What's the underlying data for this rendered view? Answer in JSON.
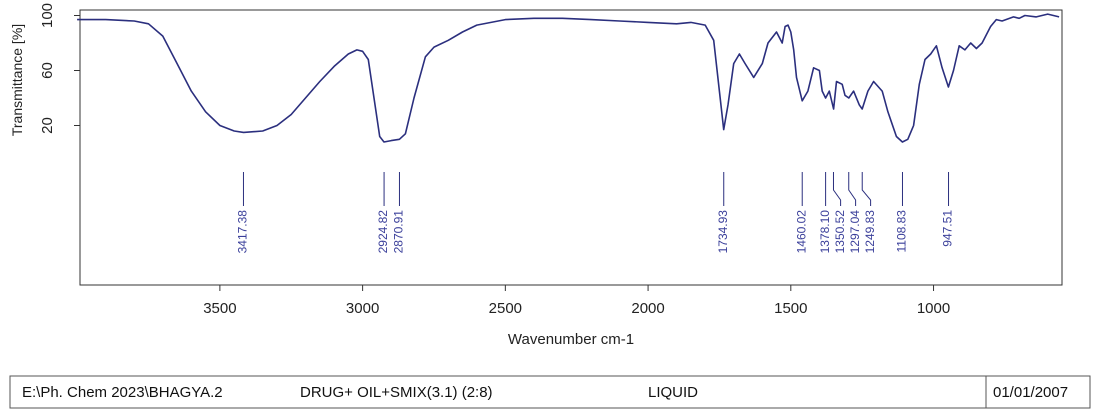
{
  "chart_data": {
    "type": "line",
    "ylabel": "Transmittance [%]",
    "xlabel": "Wavenumber cm-1",
    "color": "#2b2f7e",
    "xlim": [
      3990,
      550
    ],
    "ylim": [
      -96,
      104
    ],
    "xticks": [
      3500,
      3000,
      2500,
      2000,
      1500,
      1000
    ],
    "yticks": [
      20,
      60,
      100
    ],
    "x": [
      4000,
      3900,
      3800,
      3750,
      3700,
      3650,
      3600,
      3550,
      3500,
      3450,
      3417,
      3350,
      3300,
      3250,
      3200,
      3150,
      3100,
      3050,
      3020,
      3000,
      2980,
      2960,
      2940,
      2925,
      2900,
      2871,
      2850,
      2820,
      2780,
      2750,
      2700,
      2650,
      2600,
      2500,
      2400,
      2300,
      2200,
      2100,
      2000,
      1900,
      1850,
      1800,
      1770,
      1750,
      1735,
      1720,
      1700,
      1680,
      1660,
      1630,
      1600,
      1580,
      1550,
      1530,
      1520,
      1510,
      1500,
      1490,
      1480,
      1460,
      1440,
      1420,
      1400,
      1390,
      1378,
      1365,
      1350,
      1340,
      1320,
      1310,
      1297,
      1280,
      1260,
      1250,
      1230,
      1210,
      1180,
      1160,
      1130,
      1109,
      1090,
      1070,
      1050,
      1030,
      1010,
      1000,
      990,
      970,
      948,
      930,
      910,
      890,
      870,
      850,
      830,
      800,
      780,
      760,
      720,
      700,
      680,
      640,
      600,
      560
    ],
    "values": [
      97,
      97,
      96,
      94,
      85,
      65,
      45,
      30,
      20,
      16,
      15,
      16,
      20,
      28,
      40,
      52,
      63,
      72,
      75,
      74,
      68,
      40,
      12,
      8,
      9,
      10,
      14,
      40,
      70,
      77,
      82,
      88,
      93,
      97,
      98,
      98,
      97,
      96,
      95,
      94,
      95,
      93,
      82,
      45,
      17,
      35,
      65,
      72,
      65,
      55,
      65,
      80,
      88,
      80,
      92,
      93,
      88,
      75,
      55,
      38,
      45,
      62,
      60,
      45,
      40,
      45,
      32,
      52,
      50,
      42,
      40,
      45,
      35,
      32,
      45,
      52,
      45,
      30,
      12,
      8,
      10,
      20,
      50,
      68,
      72,
      75,
      78,
      62,
      48,
      60,
      78,
      75,
      80,
      76,
      80,
      92,
      97,
      96,
      99,
      98,
      100,
      99,
      101,
      99
    ],
    "peaks": [
      3417.38,
      2924.82,
      2870.91,
      1734.93,
      1460.02,
      1378.1,
      1350.52,
      1297.04,
      1249.83,
      1108.83,
      947.51
    ],
    "peak_labels": [
      "3417.38",
      "2924.82",
      "2870.91",
      "1734.93",
      "1460.02",
      "1378.10",
      "1350.52",
      "1297.04",
      "1249.83",
      "1108.83",
      "947.51"
    ]
  },
  "footer": {
    "path": "E:\\Ph. Chem 2023\\BHAGYA.2",
    "sample": "DRUG+ OIL+SMIX(3.1) (2:8)",
    "state": "LIQUID",
    "date": "01/01/2007"
  }
}
